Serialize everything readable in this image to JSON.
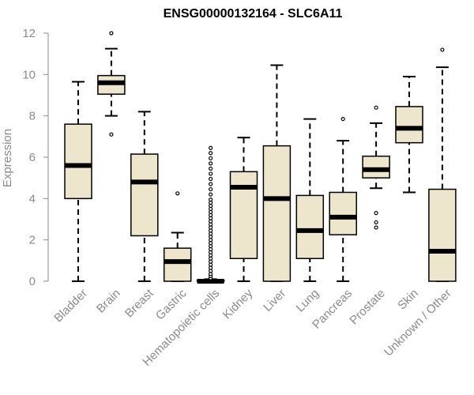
{
  "chart_data": {
    "type": "boxplot",
    "title": "ENSG00000132164 - SLC6A11",
    "xlabel": "",
    "ylabel": "Expression",
    "ylim": [
      0,
      12
    ],
    "yticks": [
      0,
      2,
      4,
      6,
      8,
      10,
      12
    ],
    "box_color": "#ede6cc",
    "categories": [
      "Bladder",
      "Brain",
      "Breast",
      "Gastric",
      "Hematopoietic cells",
      "Kidney",
      "Liver",
      "Lung",
      "Pancreas",
      "Prostate",
      "Skin",
      "Unknown / Other"
    ],
    "boxes": [
      {
        "whisker_low": 0.0,
        "q1": 4.0,
        "median": 5.6,
        "q3": 7.6,
        "whisker_high": 9.65,
        "outliers": []
      },
      {
        "whisker_low": 8.0,
        "q1": 9.05,
        "median": 9.6,
        "q3": 9.95,
        "whisker_high": 11.25,
        "outliers": [
          7.1,
          12.0
        ]
      },
      {
        "whisker_low": 0.0,
        "q1": 2.2,
        "median": 4.8,
        "q3": 6.15,
        "whisker_high": 8.2,
        "outliers": []
      },
      {
        "whisker_low": 0.0,
        "q1": 0.0,
        "median": 0.95,
        "q3": 1.6,
        "whisker_high": 2.35,
        "outliers": [
          4.25
        ]
      },
      {
        "whisker_low": 0.0,
        "q1": 0.0,
        "median": 0.0,
        "q3": 0.05,
        "whisker_high": 0.1,
        "outliers": [
          0.15,
          0.25,
          0.35,
          0.5,
          0.65,
          0.8,
          0.95,
          1.1,
          1.25,
          1.4,
          1.55,
          1.7,
          1.85,
          2.0,
          2.15,
          2.3,
          2.45,
          2.6,
          2.75,
          2.9,
          3.05,
          3.2,
          3.35,
          3.5,
          3.65,
          3.8,
          3.95,
          4.2,
          4.45,
          4.7,
          4.95,
          5.2,
          5.45,
          5.7,
          5.95,
          6.2,
          6.45
        ]
      },
      {
        "whisker_low": 0.0,
        "q1": 1.1,
        "median": 4.55,
        "q3": 5.3,
        "whisker_high": 6.95,
        "outliers": []
      },
      {
        "whisker_low": 0.0,
        "q1": 0.0,
        "median": 4.0,
        "q3": 6.55,
        "whisker_high": 10.45,
        "outliers": []
      },
      {
        "whisker_low": 0.0,
        "q1": 1.1,
        "median": 2.45,
        "q3": 4.15,
        "whisker_high": 7.85,
        "outliers": []
      },
      {
        "whisker_low": 0.0,
        "q1": 2.25,
        "median": 3.1,
        "q3": 4.3,
        "whisker_high": 6.8,
        "outliers": [
          7.85
        ]
      },
      {
        "whisker_low": 4.5,
        "q1": 5.0,
        "median": 5.4,
        "q3": 6.05,
        "whisker_high": 7.65,
        "outliers": [
          3.3,
          2.85,
          2.6,
          8.4
        ]
      },
      {
        "whisker_low": 4.3,
        "q1": 6.7,
        "median": 7.4,
        "q3": 8.45,
        "whisker_high": 9.9,
        "outliers": []
      },
      {
        "whisker_low": 0.0,
        "q1": 0.0,
        "median": 1.45,
        "q3": 4.45,
        "whisker_high": 10.35,
        "outliers": [
          11.2
        ]
      }
    ]
  }
}
